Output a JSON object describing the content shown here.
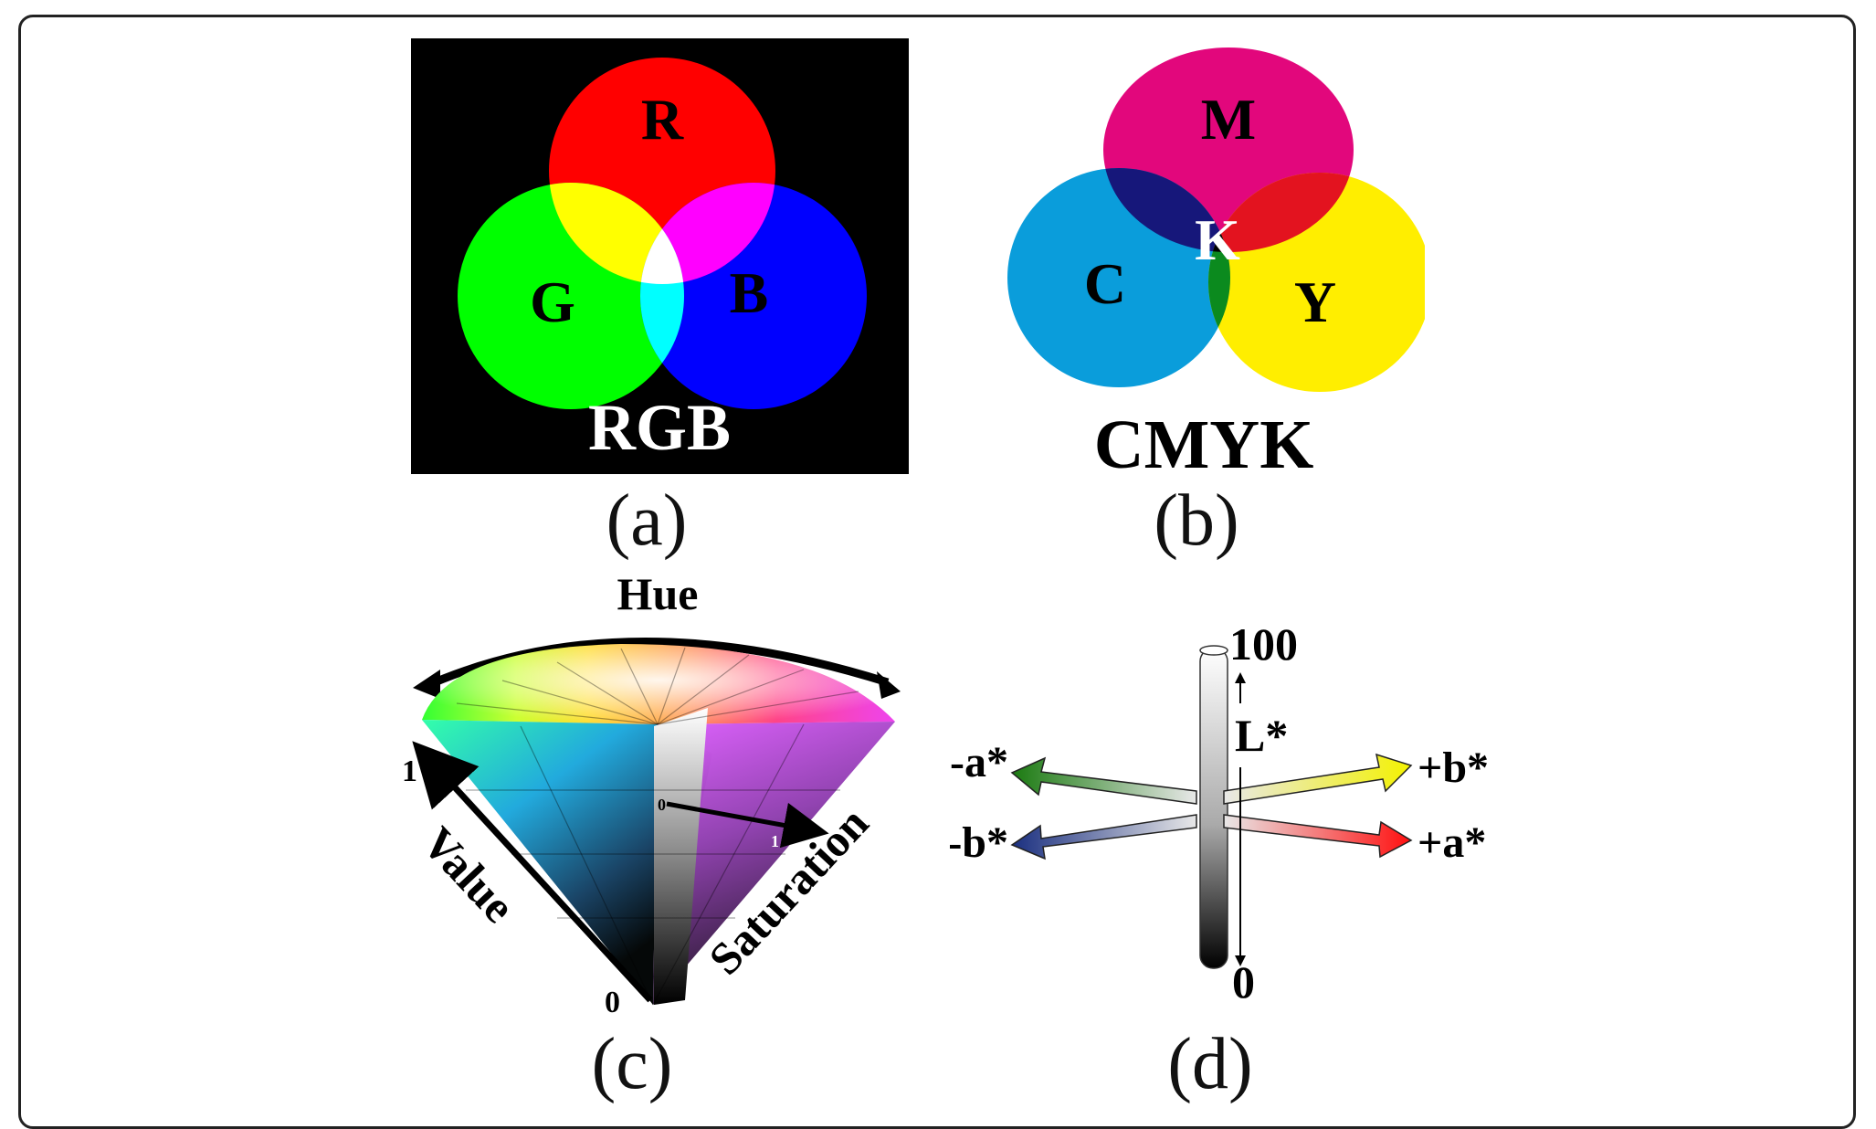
{
  "panels": {
    "a": {
      "caption": "(a)",
      "title": "RGB",
      "labels": {
        "r": "R",
        "g": "G",
        "b": "B"
      },
      "colors": {
        "background": "#000000",
        "red": "#ff0000",
        "green": "#00ff00",
        "blue": "#0000ff"
      }
    },
    "b": {
      "caption": "(b)",
      "title": "CMYK",
      "labels": {
        "m": "M",
        "c": "C",
        "y": "Y",
        "k": "K"
      },
      "colors": {
        "magenta": "#e2077c",
        "cyan": "#0a9ddb",
        "yellow": "#ffee00",
        "black": "#000000"
      }
    },
    "c": {
      "caption": "(c)",
      "hue_label": "Hue",
      "value_label": "Value",
      "saturation_label": "Saturation",
      "value_top": "1",
      "value_bottom": "0",
      "sat_start": "0",
      "sat_end": "1"
    },
    "d": {
      "caption": "(d)",
      "l_top": "100",
      "l_bottom": "0",
      "l_label": "L*",
      "neg_a": "-a*",
      "pos_a": "+a*",
      "neg_b": "-b*",
      "pos_b": "+b*",
      "colors": {
        "neg_a": "#1a7a10",
        "pos_a": "#ff1010",
        "neg_b": "#1a2f80",
        "pos_b": "#f4f200"
      }
    }
  }
}
